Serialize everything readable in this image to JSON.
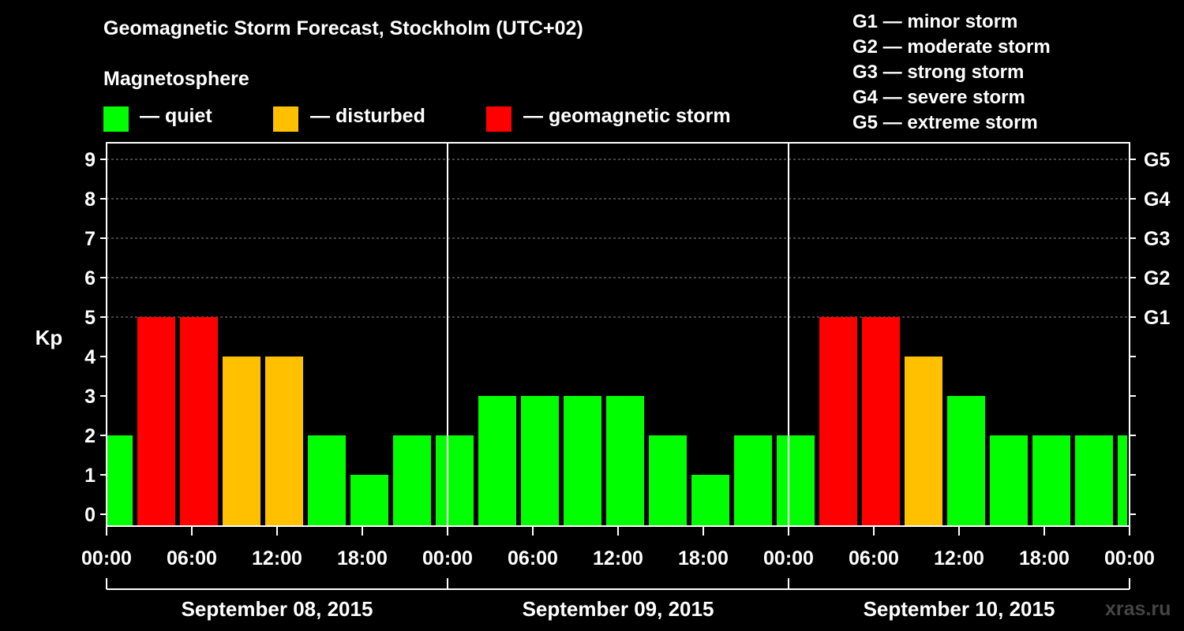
{
  "chart_data": {
    "type": "bar",
    "title": "Geomagnetic Storm Forecast, Stockholm (UTC+02)",
    "ylabel": "Kp",
    "ylim": [
      0,
      9
    ],
    "yticks": [
      "0",
      "1",
      "2",
      "3",
      "4",
      "5",
      "6",
      "7",
      "8",
      "9"
    ],
    "right_ticks": [
      {
        "kp": 5,
        "label": "G1"
      },
      {
        "kp": 6,
        "label": "G2"
      },
      {
        "kp": 7,
        "label": "G3"
      },
      {
        "kp": 8,
        "label": "G4"
      },
      {
        "kp": 9,
        "label": "G5"
      }
    ],
    "xtick_labels": [
      "00:00",
      "06:00",
      "12:00",
      "18:00",
      "00:00",
      "06:00",
      "12:00",
      "18:00",
      "00:00",
      "06:00",
      "12:00",
      "18:00",
      "00:00"
    ],
    "days": [
      "September 08, 2015",
      "September 09, 2015",
      "September 10, 2015"
    ],
    "values": [
      2,
      5,
      5,
      4,
      4,
      2,
      1,
      2,
      2,
      3,
      3,
      3,
      3,
      2,
      1,
      2,
      2,
      5,
      5,
      4,
      3,
      2,
      2,
      2,
      2
    ],
    "status_colors": {
      "quiet": "#00ff00",
      "disturbed": "#ffc000",
      "storm": "#ff0000"
    }
  },
  "legend": {
    "magnetosphere_label": "Magnetosphere",
    "items": [
      {
        "label": "— quiet",
        "color": "#00ff00"
      },
      {
        "label": "— disturbed",
        "color": "#ffc000"
      },
      {
        "label": "— geomagnetic storm",
        "color": "#ff0000"
      }
    ]
  },
  "storm_scale": [
    "G1 — minor storm",
    "G2 — moderate storm",
    "G3 — strong storm",
    "G4 — severe storm",
    "G5 — extreme storm"
  ],
  "watermark": "xras.ru"
}
